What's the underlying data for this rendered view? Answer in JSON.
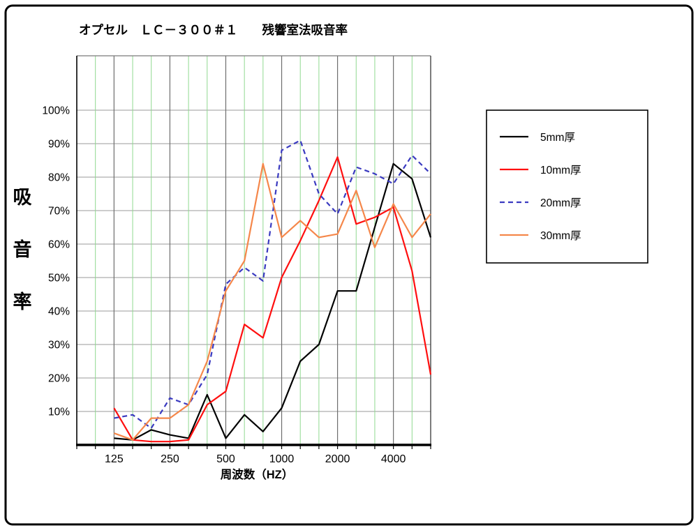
{
  "frame": {
    "border_color": "#000000",
    "background": "#ffffff"
  },
  "chart_data": {
    "type": "line",
    "title": "オプセル　ＬＣ－３００＃１　　残響室法吸音率",
    "xlabel": "周波数（HZ）",
    "ylabel": "吸音率",
    "ylabel_chars": [
      "吸",
      "音",
      "率"
    ],
    "x_scale": "log-1/3-octave-categories",
    "ylim": [
      0,
      116
    ],
    "y_ticks_percent": [
      10,
      20,
      30,
      40,
      50,
      60,
      70,
      80,
      90,
      100
    ],
    "y_tick_labels": [
      "10%",
      "20%",
      "30%",
      "40%",
      "50%",
      "60%",
      "70%",
      "80%",
      "90%",
      "100%"
    ],
    "x_tick_labels": [
      "125",
      "250",
      "500",
      "1000",
      "2000",
      "4000"
    ],
    "x_gridlines_major": [
      125,
      250,
      500,
      1000,
      2000,
      4000
    ],
    "x_gridlines_minor": [
      100,
      160,
      200,
      315,
      400,
      630,
      800,
      1250,
      1600,
      2500,
      3150,
      5000
    ],
    "grid_colors": {
      "horizontal": "#9a9a9a",
      "vertical_major": "#6e6e6e",
      "vertical_minor": "#90d890"
    },
    "categories": [
      125,
      160,
      200,
      250,
      315,
      400,
      500,
      630,
      800,
      1000,
      1250,
      1600,
      2000,
      2500,
      3150,
      4000,
      5000,
      6300
    ],
    "series": [
      {
        "name": "5mm厚",
        "color": "#000000",
        "style": "solid",
        "values": [
          2,
          1.5,
          4.5,
          3,
          2,
          15,
          2,
          9,
          4,
          11,
          25,
          30,
          46,
          46,
          65,
          84,
          79.5,
          62
        ]
      },
      {
        "name": "10mm厚",
        "color": "#ff0f0f",
        "style": "solid",
        "values": [
          11,
          1.5,
          1,
          1,
          1.5,
          12,
          16,
          36,
          32,
          50,
          61,
          73,
          86,
          66,
          68,
          71,
          52,
          21
        ]
      },
      {
        "name": "20mm厚",
        "color": "#3a3ac0",
        "style": "dashed",
        "values": [
          8,
          9,
          5,
          14,
          12,
          21,
          48,
          53,
          49,
          88,
          91,
          75,
          69,
          83,
          81,
          78,
          86.5,
          81
        ]
      },
      {
        "name": "30mm厚",
        "color": "#f5874a",
        "style": "solid",
        "values": [
          3.5,
          1.5,
          8,
          8,
          12,
          25,
          46,
          55,
          84,
          62,
          67,
          62,
          63,
          76,
          59,
          72,
          62,
          69
        ]
      }
    ],
    "legend_position": "right"
  }
}
